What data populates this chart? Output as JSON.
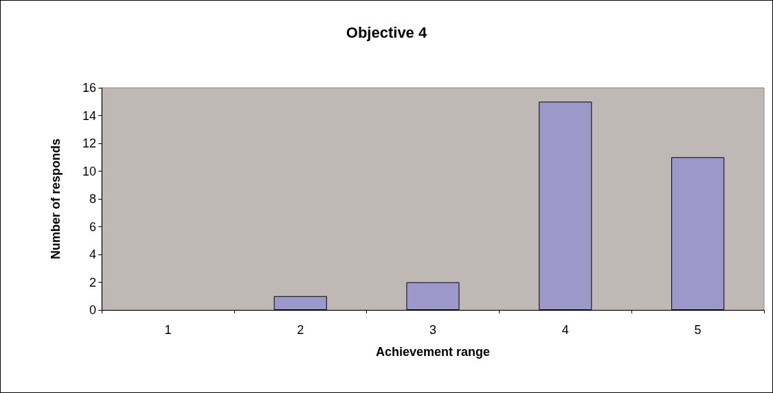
{
  "chart_data": {
    "type": "bar",
    "title": "Objective 4",
    "xlabel": "Achievement range",
    "ylabel": "Number of responds",
    "categories": [
      "1",
      "2",
      "3",
      "4",
      "5"
    ],
    "values": [
      0,
      1,
      2,
      15,
      11
    ],
    "color": "#9d98ca",
    "ylim": [
      0,
      16
    ],
    "yticks": [
      0,
      2,
      4,
      6,
      8,
      10,
      12,
      14,
      16
    ],
    "grid": false
  }
}
